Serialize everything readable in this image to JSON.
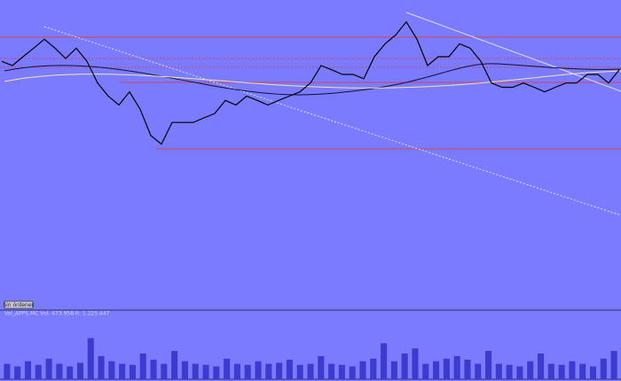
{
  "toolbar": {
    "button": "Sin órdenes"
  },
  "chart_data": [
    {
      "type": "line",
      "color": "#000000",
      "values": [
        81.4,
        80,
        82.9,
        85.7,
        88.6,
        85.7,
        82.3,
        85.7,
        81.4,
        74.3,
        70,
        67.1,
        71.4,
        65.7,
        57.1,
        54.3,
        61.4,
        61.4,
        61.4,
        62.9,
        64.3,
        68.6,
        67.1,
        70,
        68.6,
        67.1,
        68.6,
        70,
        71.4,
        74.3,
        80,
        78.6,
        77.1,
        77.1,
        75.7,
        82.9,
        87.1,
        90,
        94.3,
        88.6,
        80,
        82.9,
        82.9,
        87.1,
        85.7,
        81.4,
        74.3,
        72.9,
        72.9,
        74.3,
        72.9,
        71.4,
        72.9,
        74.3,
        74.3,
        77.1,
        77.1,
        74.3,
        78.6
      ],
      "ylim": [
        0,
        100
      ]
    },
    {
      "type": "bar",
      "title": "Vol_APPS.MC Vol: 473.958 R: 1.225.447",
      "color": "#3b3bd0",
      "values": [
        30,
        25,
        35,
        28,
        40,
        30,
        25,
        32,
        80,
        45,
        35,
        30,
        28,
        50,
        38,
        30,
        55,
        35,
        30,
        28,
        25,
        40,
        30,
        28,
        35,
        30,
        32,
        38,
        28,
        30,
        45,
        30,
        28,
        25,
        35,
        40,
        70,
        35,
        50,
        60,
        30,
        35,
        40,
        45,
        38,
        30,
        55,
        30,
        28,
        25,
        35,
        50,
        30,
        28,
        35,
        30,
        25,
        40,
        55
      ],
      "ylim": [
        0,
        100
      ]
    }
  ]
}
